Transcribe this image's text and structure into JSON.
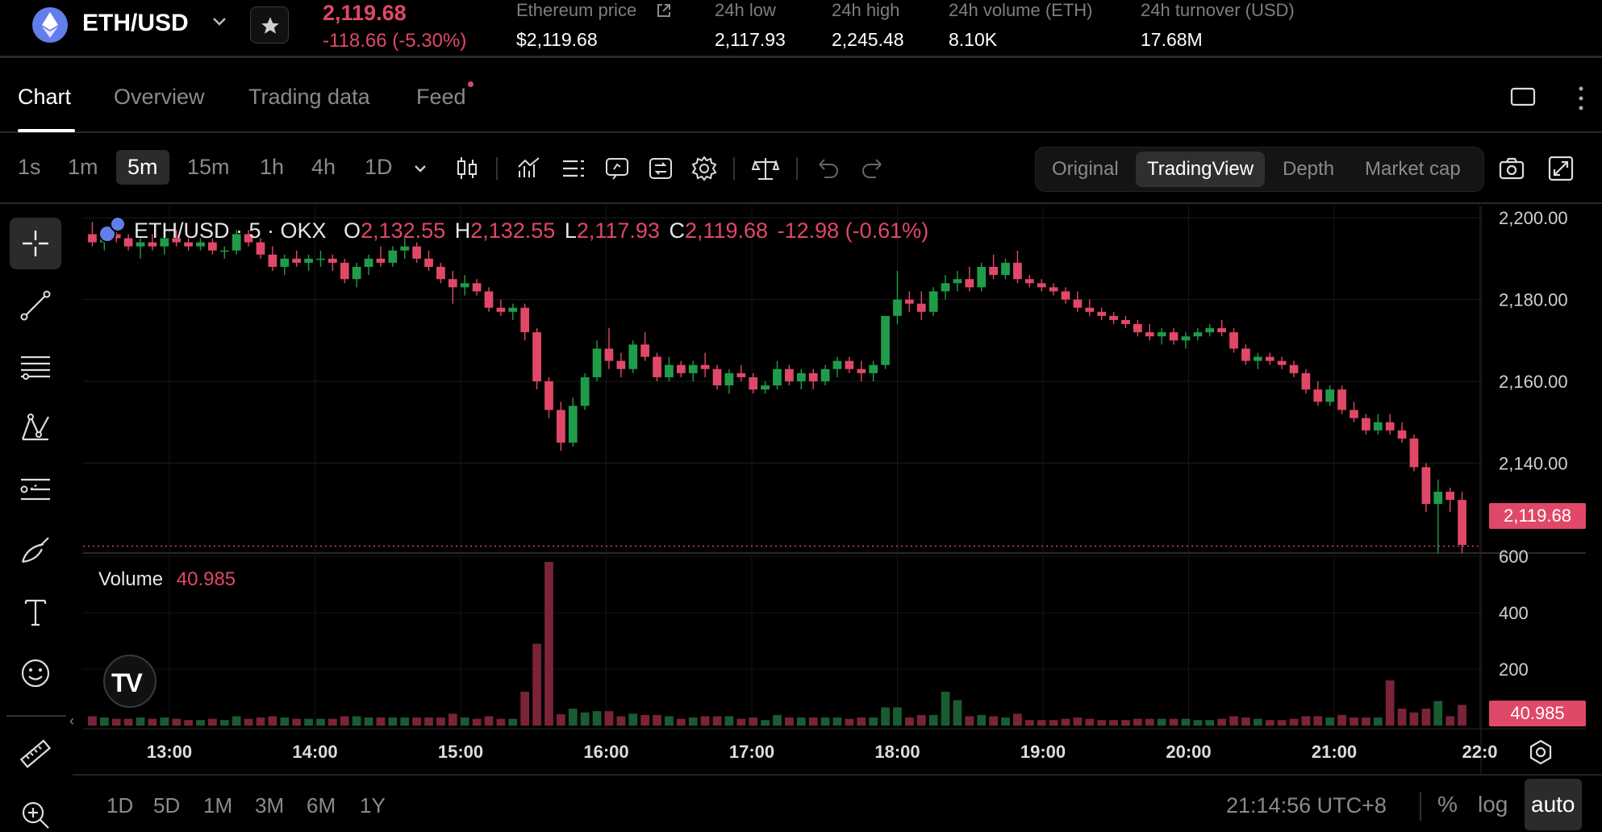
{
  "ticker": {
    "pair": "ETH/USD",
    "last_price": "2,119.68",
    "change": "-118.66 (-5.30%)",
    "stats": [
      {
        "label": "Ethereum price",
        "value": "$2,119.68"
      },
      {
        "label": "24h low",
        "value": "2,117.93"
      },
      {
        "label": "24h high",
        "value": "2,245.48"
      },
      {
        "label": "24h volume (ETH)",
        "value": "8.10K"
      },
      {
        "label": "24h turnover (USD)",
        "value": "17.68M"
      }
    ]
  },
  "tabs": [
    "Chart",
    "Overview",
    "Trading data",
    "Feed"
  ],
  "toolbar": {
    "intervals": [
      "1s",
      "1m",
      "5m",
      "15m",
      "1h",
      "4h",
      "1D"
    ],
    "active_interval": "5m",
    "views": [
      "Original",
      "TradingView",
      "Depth",
      "Market cap"
    ],
    "active_view": "TradingView",
    "icons": [
      "candle-type-icon",
      "indicators-icon",
      "list-icon",
      "alert-icon",
      "compare-icon",
      "settings-gear-icon",
      "balance-icon",
      "undo-icon",
      "redo-icon",
      "camera-icon",
      "fullscreen-icon"
    ]
  },
  "left_tools": [
    "crosshair-icon",
    "trend-line-icon",
    "fib-retracement-icon",
    "pattern-icon",
    "prediction-icon",
    "brush-icon",
    "text-icon",
    "emoji-icon",
    "ruler-icon",
    "zoom-in-icon"
  ],
  "legend": {
    "symbol": "ETH/USD · 5 · OKX",
    "o_label": "O",
    "o": "2,132.55",
    "h_label": "H",
    "h": "2,132.55",
    "l_label": "L",
    "l": "2,117.93",
    "c_label": "C",
    "c": "2,119.68",
    "chg": "-12.98 (-0.61%)"
  },
  "volume_legend": {
    "label": "Volume",
    "value": "40.985"
  },
  "price_tag": "2,119.68",
  "volume_tag": "40.985",
  "bottom": {
    "ranges": [
      "1D",
      "5D",
      "1M",
      "3M",
      "6M",
      "1Y"
    ],
    "clock": "21:14:56 UTC+8",
    "options": [
      "%",
      "log",
      "auto"
    ],
    "active_option": "auto"
  },
  "colors": {
    "up": "#1f9c4a",
    "down": "#e04868",
    "accent": "#e04868",
    "background": "#000000"
  },
  "chart_data": {
    "type": "candlestick",
    "symbol": "ETH/USD",
    "interval": "5m",
    "x_tick_labels": [
      "13:00",
      "14:00",
      "15:00",
      "16:00",
      "17:00",
      "18:00",
      "19:00",
      "20:00",
      "21:00",
      "22:0"
    ],
    "y_tick_labels": [
      "2,200.00",
      "2,180.00",
      "2,160.00",
      "2,140.00"
    ],
    "ylim": [
      2118,
      2202
    ],
    "volume_tick_labels": [
      "600",
      "400",
      "200"
    ],
    "volume_ylim": [
      0,
      600
    ],
    "candles": [
      [
        "12:35",
        2196,
        2199,
        2193,
        2194
      ],
      [
        "12:40",
        2194,
        2197,
        2192,
        2196
      ],
      [
        "12:45",
        2196,
        2198,
        2194,
        2195
      ],
      [
        "12:50",
        2195,
        2196,
        2192,
        2193
      ],
      [
        "12:55",
        2193,
        2195,
        2190,
        2194
      ],
      [
        "13:00",
        2194,
        2196,
        2192,
        2193
      ],
      [
        "13:05",
        2193,
        2196,
        2191,
        2195
      ],
      [
        "13:10",
        2195,
        2197,
        2193,
        2194
      ],
      [
        "13:15",
        2194,
        2195,
        2192,
        2193
      ],
      [
        "13:20",
        2193,
        2195,
        2192,
        2194
      ],
      [
        "13:25",
        2194,
        2195,
        2191,
        2192
      ],
      [
        "13:30",
        2192,
        2193,
        2190,
        2192
      ],
      [
        "13:35",
        2192,
        2197,
        2191,
        2196
      ],
      [
        "13:40",
        2196,
        2197,
        2193,
        2194
      ],
      [
        "13:45",
        2194,
        2195,
        2190,
        2191
      ],
      [
        "13:50",
        2191,
        2193,
        2187,
        2188
      ],
      [
        "13:55",
        2188,
        2191,
        2186,
        2190
      ],
      [
        "14:00",
        2190,
        2192,
        2188,
        2189
      ],
      [
        "14:05",
        2189,
        2191,
        2187,
        2190
      ],
      [
        "14:10",
        2190,
        2192,
        2188,
        2190
      ],
      [
        "14:15",
        2190,
        2191,
        2187,
        2189
      ],
      [
        "14:20",
        2189,
        2190,
        2184,
        2185
      ],
      [
        "14:25",
        2185,
        2189,
        2183,
        2188
      ],
      [
        "14:30",
        2188,
        2191,
        2186,
        2190
      ],
      [
        "14:35",
        2190,
        2193,
        2188,
        2189
      ],
      [
        "14:40",
        2189,
        2193,
        2188,
        2192
      ],
      [
        "14:45",
        2192,
        2195,
        2190,
        2193
      ],
      [
        "14:50",
        2193,
        2194,
        2189,
        2190
      ],
      [
        "14:55",
        2190,
        2192,
        2187,
        2188
      ],
      [
        "15:00",
        2188,
        2189,
        2184,
        2185
      ],
      [
        "15:05",
        2185,
        2187,
        2179,
        2183
      ],
      [
        "15:10",
        2183,
        2186,
        2181,
        2184
      ],
      [
        "15:15",
        2184,
        2185,
        2181,
        2182
      ],
      [
        "15:20",
        2182,
        2183,
        2177,
        2178
      ],
      [
        "15:25",
        2178,
        2180,
        2176,
        2177
      ],
      [
        "15:30",
        2177,
        2179,
        2175,
        2178
      ],
      [
        "15:35",
        2178,
        2179,
        2170,
        2172
      ],
      [
        "15:40",
        2172,
        2173,
        2158,
        2160
      ],
      [
        "15:45",
        2160,
        2161,
        2151,
        2153
      ],
      [
        "15:50",
        2153,
        2155,
        2143,
        2145
      ],
      [
        "15:55",
        2145,
        2156,
        2144,
        2154
      ],
      [
        "16:00",
        2154,
        2162,
        2153,
        2161
      ],
      [
        "16:05",
        2161,
        2170,
        2160,
        2168
      ],
      [
        "16:10",
        2168,
        2173,
        2163,
        2165
      ],
      [
        "16:15",
        2165,
        2167,
        2161,
        2163
      ],
      [
        "16:20",
        2163,
        2170,
        2162,
        2169
      ],
      [
        "16:25",
        2169,
        2172,
        2165,
        2166
      ],
      [
        "16:30",
        2166,
        2167,
        2160,
        2161
      ],
      [
        "16:35",
        2161,
        2166,
        2160,
        2164
      ],
      [
        "16:40",
        2164,
        2165,
        2161,
        2162
      ],
      [
        "16:45",
        2162,
        2165,
        2160,
        2164
      ],
      [
        "16:50",
        2164,
        2167,
        2161,
        2163
      ],
      [
        "16:55",
        2163,
        2164,
        2158,
        2159
      ],
      [
        "17:00",
        2159,
        2163,
        2157,
        2162
      ],
      [
        "17:05",
        2162,
        2164,
        2160,
        2161
      ],
      [
        "17:10",
        2161,
        2162,
        2157,
        2158
      ],
      [
        "17:15",
        2158,
        2160,
        2157,
        2159
      ],
      [
        "17:20",
        2159,
        2165,
        2158,
        2163
      ],
      [
        "17:25",
        2163,
        2164,
        2159,
        2160
      ],
      [
        "17:30",
        2160,
        2163,
        2158,
        2162
      ],
      [
        "17:35",
        2162,
        2163,
        2158,
        2160
      ],
      [
        "17:40",
        2160,
        2164,
        2159,
        2163
      ],
      [
        "17:45",
        2163,
        2166,
        2161,
        2165
      ],
      [
        "17:50",
        2165,
        2166,
        2162,
        2163
      ],
      [
        "17:55",
        2163,
        2165,
        2160,
        2162
      ],
      [
        "18:00",
        2162,
        2165,
        2160,
        2164
      ],
      [
        "18:05",
        2164,
        2176,
        2163,
        2176
      ],
      [
        "18:10",
        2176,
        2187,
        2174,
        2180
      ],
      [
        "18:15",
        2180,
        2182,
        2177,
        2179
      ],
      [
        "18:20",
        2179,
        2182,
        2175,
        2177
      ],
      [
        "18:25",
        2177,
        2183,
        2176,
        2182
      ],
      [
        "18:30",
        2182,
        2186,
        2180,
        2184
      ],
      [
        "18:35",
        2184,
        2187,
        2182,
        2185
      ],
      [
        "18:40",
        2185,
        2188,
        2182,
        2183
      ],
      [
        "18:45",
        2183,
        2189,
        2182,
        2188
      ],
      [
        "18:50",
        2188,
        2191,
        2185,
        2186
      ],
      [
        "18:55",
        2186,
        2190,
        2185,
        2189
      ],
      [
        "19:00",
        2189,
        2192,
        2184,
        2185
      ]
    ],
    "volumes": []
  }
}
